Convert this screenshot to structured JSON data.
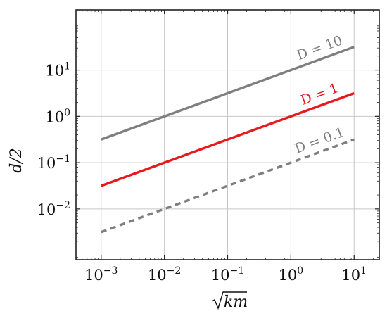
{
  "chart_data": {
    "type": "line",
    "title": "",
    "xlabel": "√km",
    "ylabel": "d/2",
    "xscale": "log",
    "yscale": "log",
    "xlim": [
      0.0004,
      25
    ],
    "ylim": [
      0.0008,
      200
    ],
    "grid": true,
    "xticks": [
      {
        "value": 0.001,
        "base": "10",
        "exp": "−3"
      },
      {
        "value": 0.01,
        "base": "10",
        "exp": "−2"
      },
      {
        "value": 0.1,
        "base": "10",
        "exp": "−1"
      },
      {
        "value": 1,
        "base": "10",
        "exp": "0"
      },
      {
        "value": 10,
        "base": "10",
        "exp": "1"
      }
    ],
    "yticks": [
      {
        "value": 0.01,
        "base": "10",
        "exp": "−2"
      },
      {
        "value": 0.1,
        "base": "10",
        "exp": "−1"
      },
      {
        "value": 1,
        "base": "10",
        "exp": "0"
      },
      {
        "value": 10,
        "base": "10",
        "exp": "1"
      }
    ],
    "series": [
      {
        "name": "D = 10",
        "color": "#7f7f7f",
        "style": "solid",
        "x": [
          0.001,
          10
        ],
        "y": [
          0.316,
          31.6
        ]
      },
      {
        "name": "D = 1",
        "color": "#e8191c",
        "style": "solid",
        "x": [
          0.001,
          10
        ],
        "y": [
          0.0316,
          3.16
        ]
      },
      {
        "name": "D = 0.1",
        "color": "#7f7f7f",
        "style": "dashed",
        "x": [
          0.001,
          10
        ],
        "y": [
          0.00316,
          0.316
        ]
      }
    ]
  }
}
